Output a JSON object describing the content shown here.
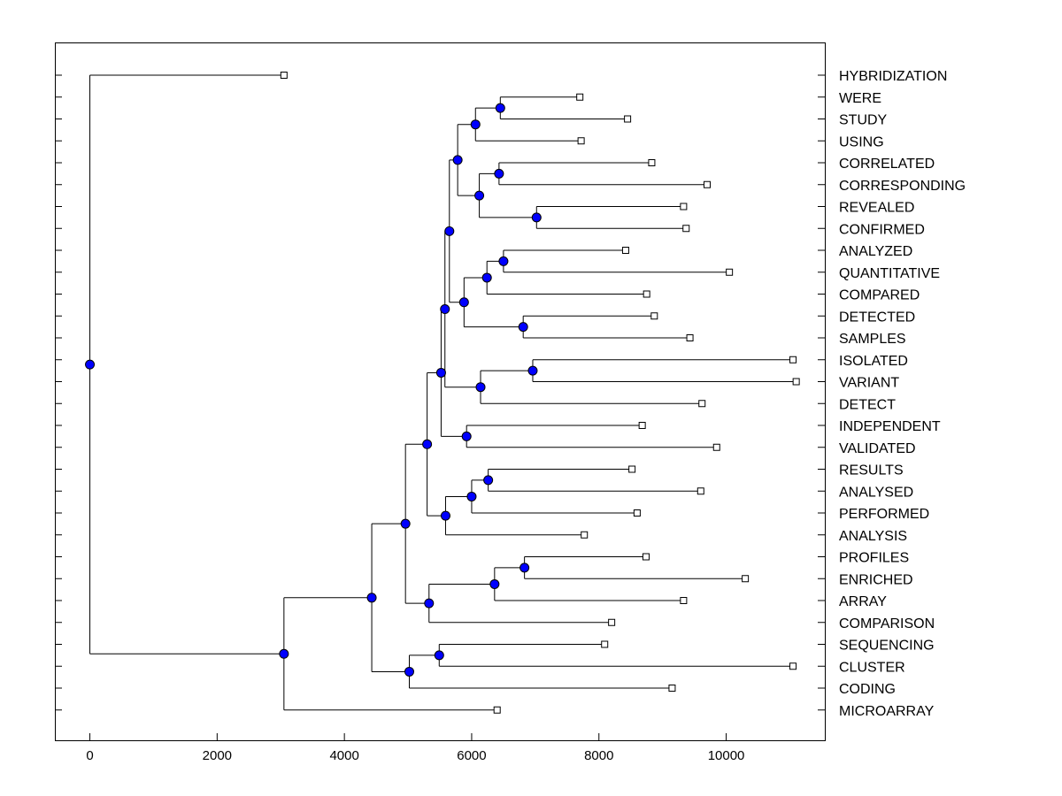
{
  "chart_data": {
    "type": "dendrogram",
    "title": "",
    "xlabel": "",
    "ylabel": "",
    "xlim": [
      -550,
      11550
    ],
    "xticks": [
      0,
      2000,
      4000,
      6000,
      8000,
      10000
    ],
    "xtick_labels": [
      "0",
      "2000",
      "4000",
      "6000",
      "8000",
      "10000"
    ],
    "leaves": [
      {
        "label": "HYBRIDIZATION",
        "x": 3050
      },
      {
        "label": "WERE",
        "x": 7700
      },
      {
        "label": "STUDY",
        "x": 8450
      },
      {
        "label": "USING",
        "x": 7720
      },
      {
        "label": "CORRELATED",
        "x": 8830
      },
      {
        "label": "CORRESPONDING",
        "x": 9700
      },
      {
        "label": "REVEALED",
        "x": 9330
      },
      {
        "label": "CONFIRMED",
        "x": 9370
      },
      {
        "label": "ANALYZED",
        "x": 8420
      },
      {
        "label": "QUANTITATIVE",
        "x": 10050
      },
      {
        "label": "COMPARED",
        "x": 8750
      },
      {
        "label": "DETECTED",
        "x": 8870
      },
      {
        "label": "SAMPLES",
        "x": 9430
      },
      {
        "label": "ISOLATED",
        "x": 11050
      },
      {
        "label": "VARIANT",
        "x": 11100
      },
      {
        "label": "DETECT",
        "x": 9620
      },
      {
        "label": "INDEPENDENT",
        "x": 8680
      },
      {
        "label": "VALIDATED",
        "x": 9850
      },
      {
        "label": "RESULTS",
        "x": 8520
      },
      {
        "label": "ANALYSED",
        "x": 9600
      },
      {
        "label": "PERFORMED",
        "x": 8600
      },
      {
        "label": "ANALYSIS",
        "x": 7770
      },
      {
        "label": "PROFILES",
        "x": 8740
      },
      {
        "label": "ENRICHED",
        "x": 10300
      },
      {
        "label": "ARRAY",
        "x": 9330
      },
      {
        "label": "COMPARISON",
        "x": 8200
      },
      {
        "label": "SEQUENCING",
        "x": 8090
      },
      {
        "label": "CLUSTER",
        "x": 11050
      },
      {
        "label": "CODING",
        "x": 9150
      },
      {
        "label": "MICROARRAY",
        "x": 6400
      }
    ],
    "merges": [
      {
        "id": "n1",
        "x": 6450,
        "children": [
          "WERE",
          "STUDY"
        ]
      },
      {
        "id": "n2",
        "x": 6060,
        "children": [
          "n1",
          "USING"
        ]
      },
      {
        "id": "n3",
        "x": 6430,
        "children": [
          "CORRELATED",
          "CORRESPONDING"
        ]
      },
      {
        "id": "n4",
        "x": 7020,
        "children": [
          "REVEALED",
          "CONFIRMED"
        ]
      },
      {
        "id": "n5",
        "x": 6120,
        "children": [
          "n3",
          "n4"
        ]
      },
      {
        "id": "n6",
        "x": 5780,
        "children": [
          "n2",
          "n5"
        ]
      },
      {
        "id": "n7",
        "x": 6500,
        "children": [
          "ANALYZED",
          "QUANTITATIVE"
        ]
      },
      {
        "id": "n8",
        "x": 6240,
        "children": [
          "n7",
          "COMPARED"
        ]
      },
      {
        "id": "n9",
        "x": 6810,
        "children": [
          "DETECTED",
          "SAMPLES"
        ]
      },
      {
        "id": "n10",
        "x": 5880,
        "children": [
          "n8",
          "n9"
        ]
      },
      {
        "id": "n11",
        "x": 5650,
        "children": [
          "n6",
          "n10"
        ]
      },
      {
        "id": "n12",
        "x": 6960,
        "children": [
          "ISOLATED",
          "VARIANT"
        ]
      },
      {
        "id": "n13",
        "x": 6140,
        "children": [
          "n12",
          "DETECT"
        ]
      },
      {
        "id": "n14",
        "x": 5580,
        "children": [
          "n11",
          "n13"
        ]
      },
      {
        "id": "n15",
        "x": 5920,
        "children": [
          "INDEPENDENT",
          "VALIDATED"
        ]
      },
      {
        "id": "n16",
        "x": 5520,
        "children": [
          "n14",
          "n15"
        ]
      },
      {
        "id": "n17",
        "x": 6260,
        "children": [
          "RESULTS",
          "ANALYSED"
        ]
      },
      {
        "id": "n18",
        "x": 6000,
        "children": [
          "n17",
          "PERFORMED"
        ]
      },
      {
        "id": "n19",
        "x": 5590,
        "children": [
          "n18",
          "ANALYSIS"
        ]
      },
      {
        "id": "n20",
        "x": 5300,
        "children": [
          "n16",
          "n19"
        ]
      },
      {
        "id": "n21",
        "x": 6830,
        "children": [
          "PROFILES",
          "ENRICHED"
        ]
      },
      {
        "id": "n22",
        "x": 6360,
        "children": [
          "n21",
          "ARRAY"
        ]
      },
      {
        "id": "n23",
        "x": 5330,
        "children": [
          "n22",
          "COMPARISON"
        ]
      },
      {
        "id": "n24",
        "x": 4960,
        "children": [
          "n20",
          "n23"
        ]
      },
      {
        "id": "n25",
        "x": 5490,
        "children": [
          "SEQUENCING",
          "CLUSTER"
        ]
      },
      {
        "id": "n26",
        "x": 5020,
        "children": [
          "n25",
          "CODING"
        ]
      },
      {
        "id": "n27",
        "x": 4430,
        "children": [
          "n24",
          "n26"
        ]
      },
      {
        "id": "n28",
        "x": 3050,
        "children": [
          "n27",
          "MICROARRAY"
        ]
      },
      {
        "id": "root",
        "x": 0,
        "children": [
          "HYBRIDIZATION",
          "n28"
        ]
      }
    ],
    "colors": {
      "node_fill": "#0000ff",
      "leaf_fill": "#ffffff",
      "line": "#000000"
    }
  }
}
